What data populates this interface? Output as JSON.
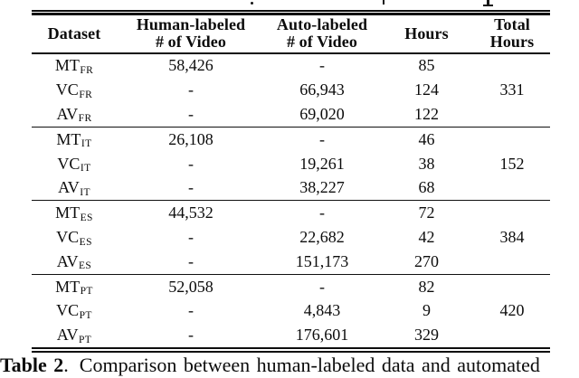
{
  "colors": {
    "background": "#ffffff",
    "text": "#0c0c0c",
    "rule": "#0d0d0d"
  },
  "table": {
    "headers": [
      {
        "lines": [
          "Dataset"
        ]
      },
      {
        "lines": [
          "Human-labeled",
          "# of Video"
        ]
      },
      {
        "lines": [
          "Auto-labeled",
          "# of Video"
        ]
      },
      {
        "lines": [
          "Hours"
        ]
      },
      {
        "lines": [
          "Total",
          "Hours"
        ]
      }
    ],
    "groups": [
      {
        "total_hours": "331",
        "rows": [
          {
            "name": "MT",
            "subscript": "FR",
            "human_labeled": "58,426",
            "auto_labeled": "-",
            "hours": "85"
          },
          {
            "name": "VC",
            "subscript": "FR",
            "human_labeled": "-",
            "auto_labeled": "66,943",
            "hours": "124"
          },
          {
            "name": "AV",
            "subscript": "FR",
            "human_labeled": "-",
            "auto_labeled": "69,020",
            "hours": "122"
          }
        ]
      },
      {
        "total_hours": "152",
        "rows": [
          {
            "name": "MT",
            "subscript": "IT",
            "human_labeled": "26,108",
            "auto_labeled": "-",
            "hours": "46"
          },
          {
            "name": "VC",
            "subscript": "IT",
            "human_labeled": "-",
            "auto_labeled": "19,261",
            "hours": "38"
          },
          {
            "name": "AV",
            "subscript": "IT",
            "human_labeled": "-",
            "auto_labeled": "38,227",
            "hours": "68"
          }
        ]
      },
      {
        "total_hours": "384",
        "rows": [
          {
            "name": "MT",
            "subscript": "ES",
            "human_labeled": "44,532",
            "auto_labeled": "-",
            "hours": "72"
          },
          {
            "name": "VC",
            "subscript": "ES",
            "human_labeled": "-",
            "auto_labeled": "22,682",
            "hours": "42"
          },
          {
            "name": "AV",
            "subscript": "ES",
            "human_labeled": "-",
            "auto_labeled": "151,173",
            "hours": "270"
          }
        ]
      },
      {
        "total_hours": "420",
        "rows": [
          {
            "name": "MT",
            "subscript": "PT",
            "human_labeled": "52,058",
            "auto_labeled": "-",
            "hours": "82"
          },
          {
            "name": "VC",
            "subscript": "PT",
            "human_labeled": "-",
            "auto_labeled": "4,843",
            "hours": "9"
          },
          {
            "name": "AV",
            "subscript": "PT",
            "human_labeled": "-",
            "auto_labeled": "176,601",
            "hours": "329"
          }
        ]
      }
    ]
  },
  "caption": {
    "label": "Table 2",
    "separator": ".",
    "text": "Comparison between human-labeled data and automated"
  }
}
